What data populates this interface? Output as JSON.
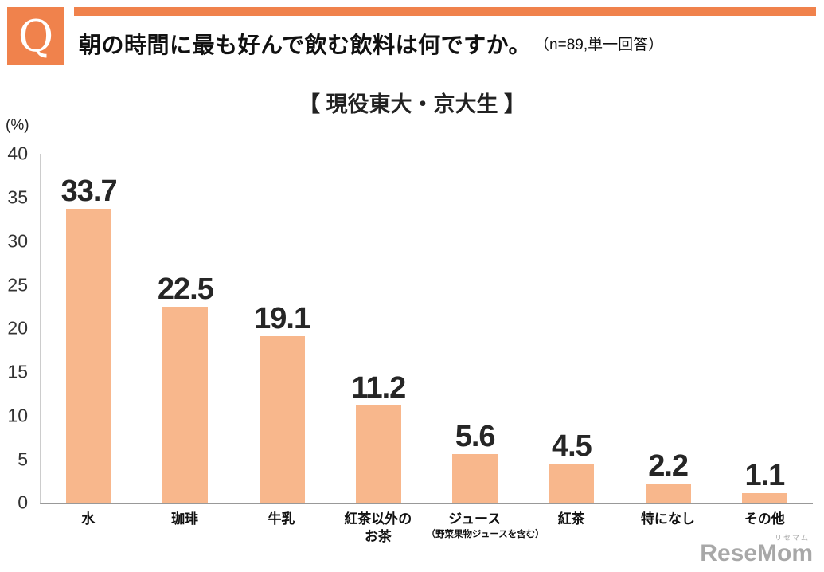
{
  "header": {
    "q_label": "Q",
    "title": "朝の時間に最も好んで飲む飲料は何ですか。",
    "note": "（n=89,単一回答）"
  },
  "chart_data": {
    "type": "bar",
    "title": "【 現役東大・京大生 】",
    "ylabel": "(%)",
    "ylim": [
      0,
      40
    ],
    "yticks": [
      0,
      5,
      10,
      15,
      20,
      25,
      30,
      35,
      40
    ],
    "grid": false,
    "legend": "none",
    "categories": [
      {
        "label": "水"
      },
      {
        "label": "珈琲"
      },
      {
        "label": "牛乳"
      },
      {
        "label": "紅茶以外の",
        "label2": "お茶"
      },
      {
        "label": "ジュース",
        "sub": "（野菜果物ジュースを含む）"
      },
      {
        "label": "紅茶"
      },
      {
        "label": "特になし"
      },
      {
        "label": "その他"
      }
    ],
    "values": [
      33.7,
      22.5,
      19.1,
      11.2,
      5.6,
      4.5,
      2.2,
      1.1
    ]
  },
  "watermark": {
    "text": "ReseMom",
    "small": "リセマム"
  },
  "colors": {
    "accent": "#f0824c",
    "bar": "#f8b78c",
    "value_text": "#262626",
    "axis": "#999999",
    "watermark": "#a8a8a8"
  }
}
